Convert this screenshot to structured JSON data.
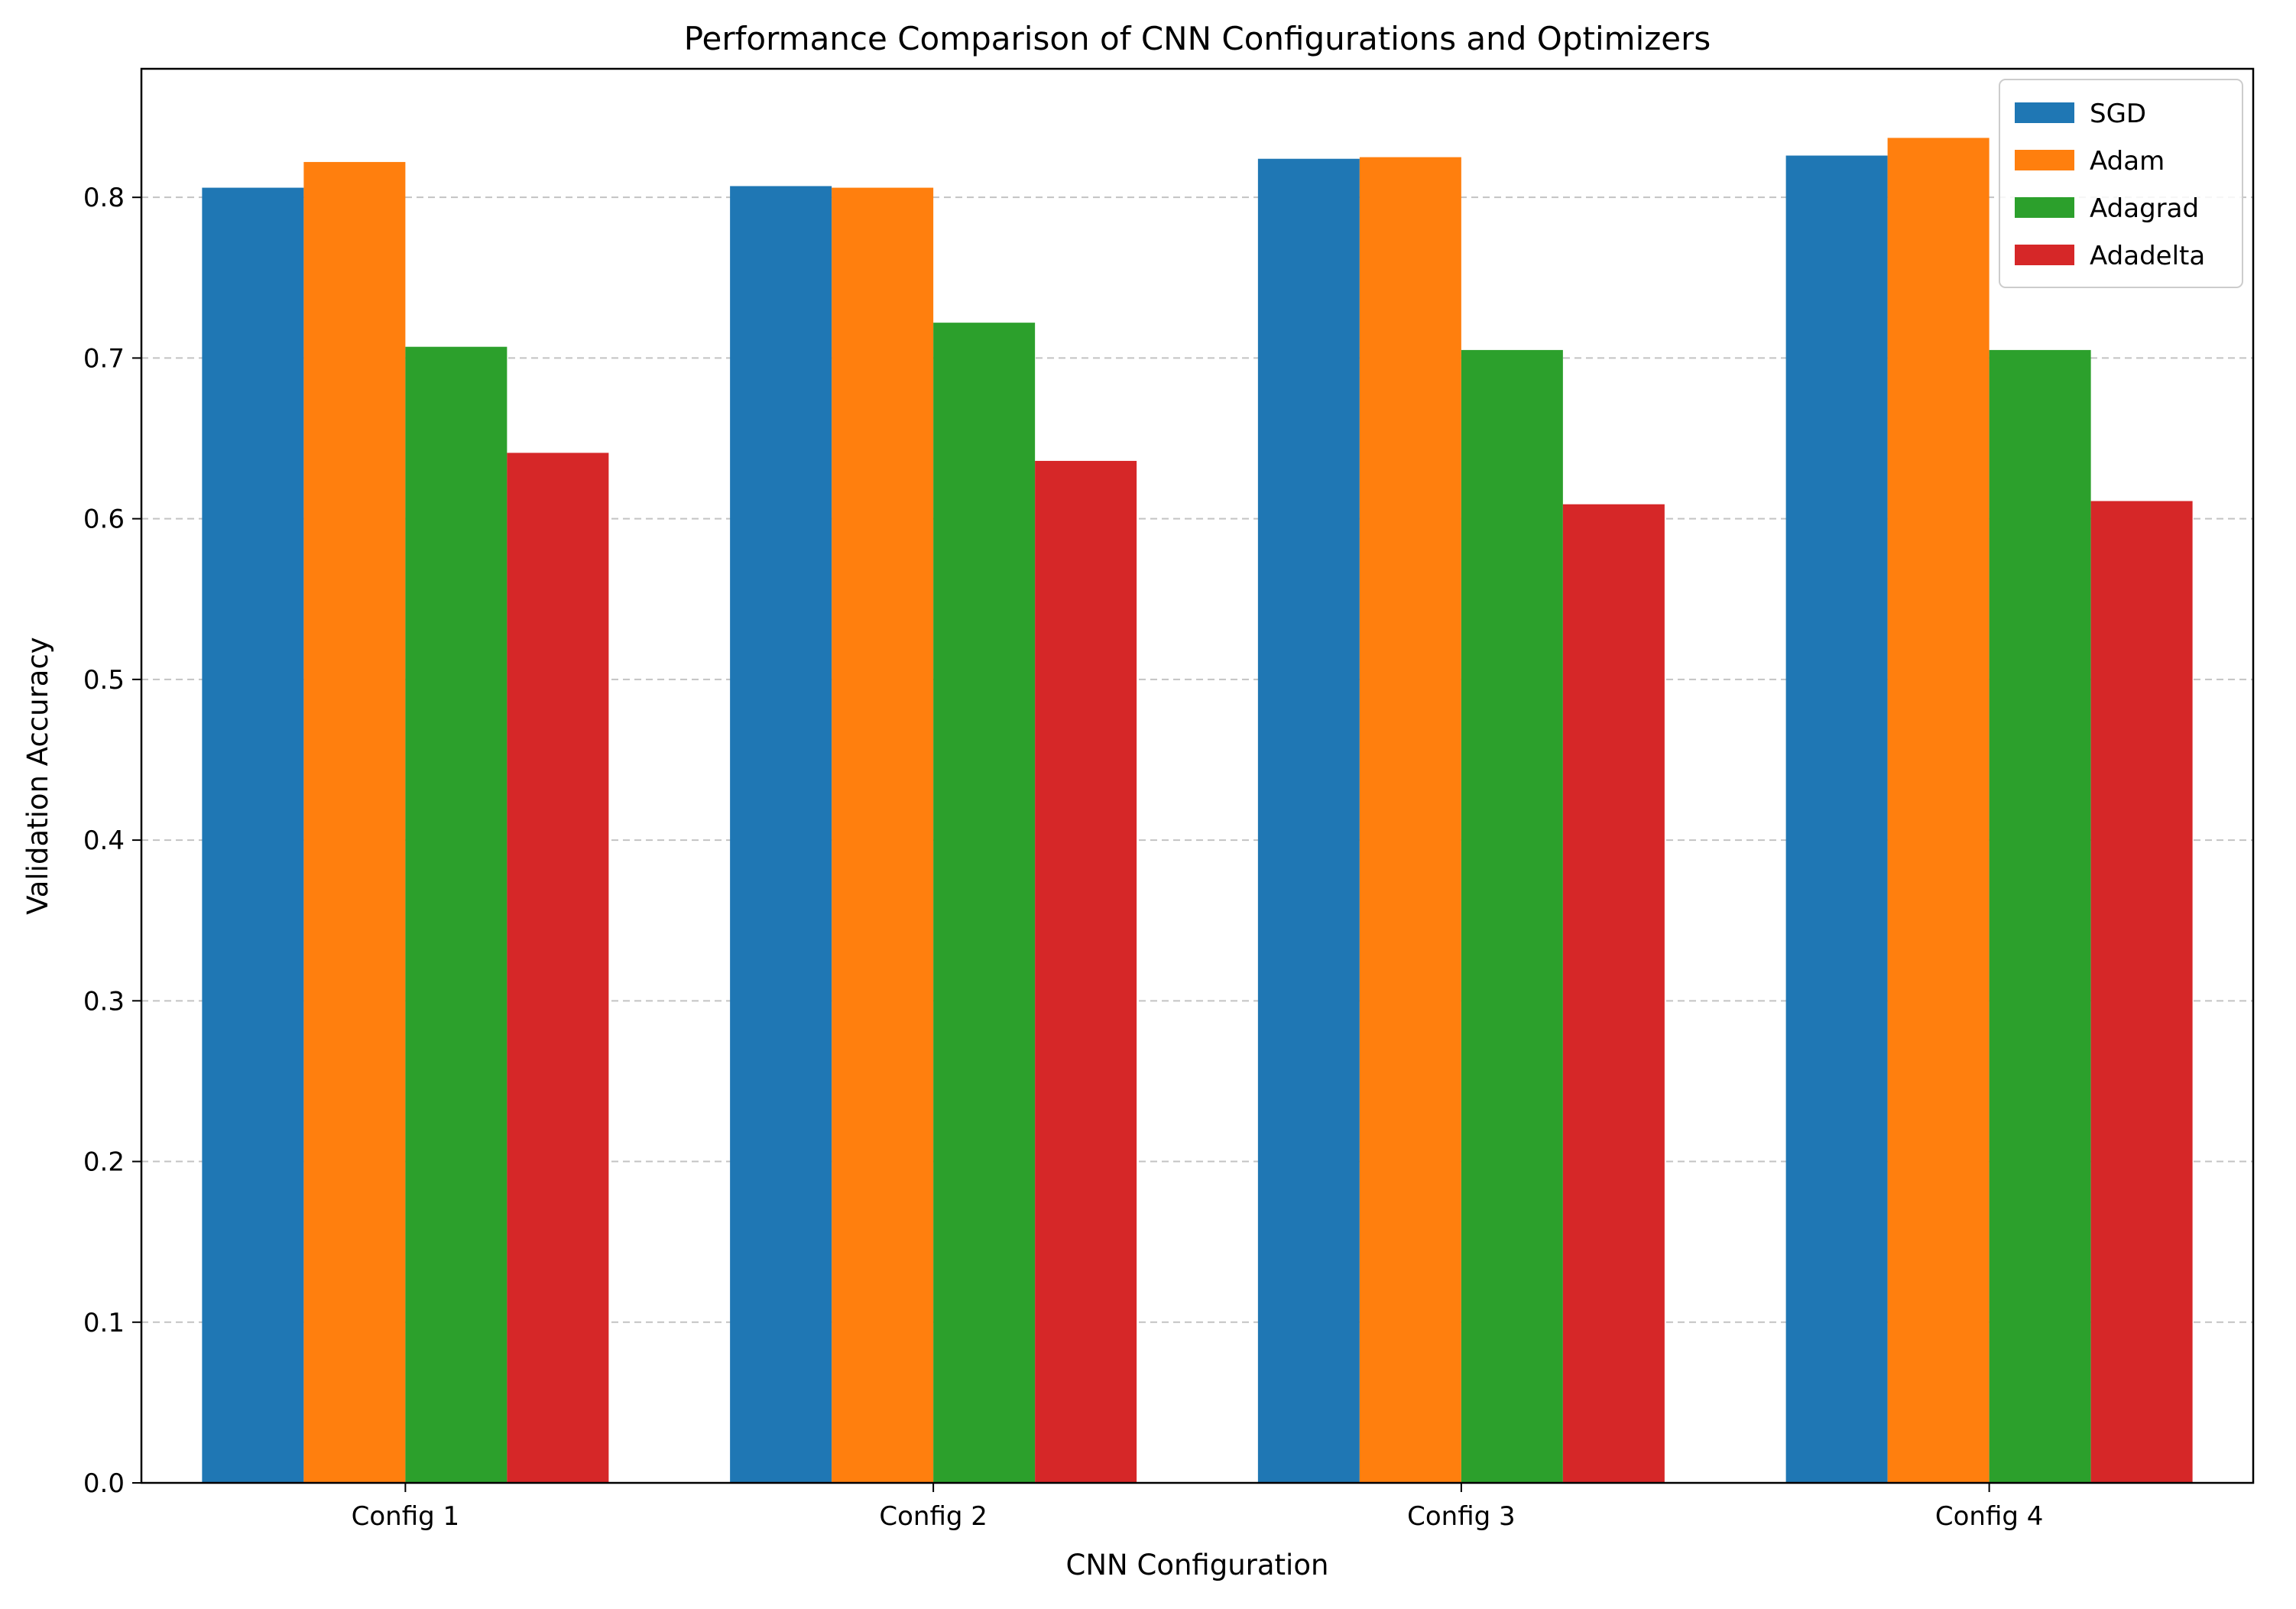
{
  "chart_data": {
    "type": "bar",
    "title": "Performance Comparison of CNN Configurations and Optimizers",
    "xlabel": "CNN Configuration",
    "ylabel": "Validation Accuracy",
    "categories": [
      "Config 1",
      "Config 2",
      "Config 3",
      "Config 4"
    ],
    "series": [
      {
        "name": "SGD",
        "color": "#1f77b4",
        "values": [
          0.806,
          0.807,
          0.824,
          0.826
        ]
      },
      {
        "name": "Adam",
        "color": "#ff7f0e",
        "values": [
          0.822,
          0.806,
          0.825,
          0.837
        ]
      },
      {
        "name": "Adagrad",
        "color": "#2ca02c",
        "values": [
          0.707,
          0.722,
          0.705,
          0.705
        ]
      },
      {
        "name": "Adadelta",
        "color": "#d62728",
        "values": [
          0.641,
          0.636,
          0.609,
          0.611
        ]
      }
    ],
    "ylim": [
      0,
      0.88
    ],
    "yticks": [
      0.0,
      0.1,
      0.2,
      0.3,
      0.4,
      0.5,
      0.6,
      0.7,
      0.8
    ],
    "ytick_labels": [
      "0.0",
      "0.1",
      "0.2",
      "0.3",
      "0.4",
      "0.5",
      "0.6",
      "0.7",
      "0.8"
    ],
    "grid": "y-dashed",
    "legend_position": "top-right"
  }
}
